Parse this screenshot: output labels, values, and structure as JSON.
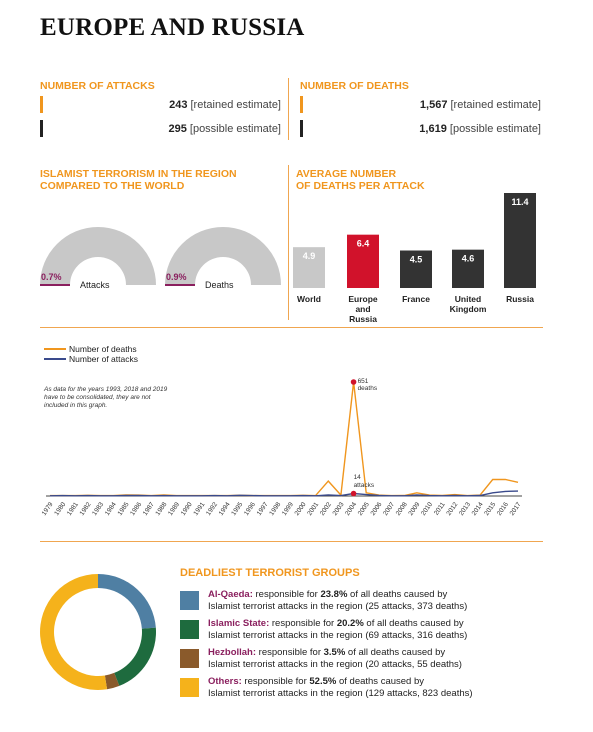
{
  "title": "EUROPE AND RUSSIA",
  "attacks": {
    "heading": "NUMBER OF ATTACKS",
    "retained_value": "243",
    "retained_label": "[retained estimate]",
    "possible_value": "295",
    "possible_label": "[possible estimate]"
  },
  "deaths": {
    "heading": "NUMBER OF DEATHS",
    "retained_value": "1,567",
    "retained_label": "[retained estimate]",
    "possible_value": "1,619",
    "possible_label": "[possible estimate]"
  },
  "comparison": {
    "heading_line1": "ISLAMIST TERRORISM IN THE REGION",
    "heading_line2": "COMPARED TO THE WORLD",
    "gauges": [
      {
        "label": "Attacks",
        "pct_text": "0.7%",
        "value": 0.7
      },
      {
        "label": "Deaths",
        "pct_text": "0.9%",
        "value": 0.9
      }
    ]
  },
  "colors": {
    "orange": "#f0961e",
    "crimson": "#d1122b",
    "dark": "#333333",
    "light": "#c8c8c8",
    "navy": "#3a4a8c",
    "purple": "#8a1f5e",
    "alqaeda": "#4f7fa3",
    "islamicstate": "#1e6b3e",
    "hezbollah": "#8a5a2b",
    "others": "#f5b21b"
  },
  "chart_data": [
    {
      "type": "bar",
      "title": "AVERAGE NUMBER OF DEATHS PER ATTACK",
      "categories": [
        "World",
        "Europe and Russia",
        "France",
        "United Kingdom",
        "Russia"
      ],
      "values": [
        4.9,
        6.4,
        4.5,
        4.6,
        11.4
      ],
      "labels": [
        "4.9",
        "6.4",
        "4.5",
        "4.6",
        "11.4"
      ],
      "ylim": [
        0,
        11.4
      ]
    },
    {
      "type": "line",
      "x": [
        "1979",
        "1980",
        "1981",
        "1982",
        "1983",
        "1984",
        "1985",
        "1986",
        "1987",
        "1988",
        "1989",
        "1990",
        "1991",
        "1992",
        "1994",
        "1995",
        "1996",
        "1997",
        "1998",
        "1999",
        "2000",
        "2001",
        "2002",
        "2003",
        "2004",
        "2005",
        "2006",
        "2007",
        "2008",
        "2009",
        "2010",
        "2011",
        "2012",
        "2013",
        "2014",
        "2015",
        "2016",
        "2017"
      ],
      "series": [
        {
          "name": "Number of deaths",
          "values": [
            2,
            2,
            2,
            4,
            2,
            2,
            6,
            5,
            2,
            6,
            2,
            2,
            2,
            2,
            2,
            4,
            2,
            2,
            2,
            2,
            4,
            2,
            85,
            5,
            651,
            18,
            5,
            2,
            3,
            18,
            5,
            3,
            8,
            2,
            5,
            94,
            94,
            78
          ]
        },
        {
          "name": "Number of attacks",
          "values": [
            1,
            2,
            1,
            2,
            1,
            1,
            3,
            3,
            1,
            2,
            1,
            1,
            1,
            2,
            1,
            4,
            2,
            1,
            1,
            1,
            2,
            1,
            6,
            2,
            14,
            8,
            3,
            1,
            1,
            6,
            2,
            1,
            3,
            1,
            3,
            18,
            26,
            28
          ]
        }
      ],
      "ylim": [
        0,
        651
      ],
      "annotations": [
        {
          "text_line1": "651",
          "text_line2": "deaths"
        },
        {
          "text_line1": "14",
          "text_line2": "attacks"
        }
      ],
      "note_lines": [
        "As data for the years 1993, 2018 and 2019",
        "have to be consolidated, they are not",
        "included in this graph."
      ]
    },
    {
      "type": "pie",
      "title": "DEADLIEST TERRORIST GROUPS",
      "categories": [
        "Al-Qaeda",
        "Islamic State",
        "Hezbollah",
        "Others"
      ],
      "values": [
        23.8,
        20.2,
        3.5,
        52.5
      ]
    }
  ],
  "groups": [
    {
      "name": "Al-Qaeda:",
      "pre": " responsible for ",
      "pct": "23.8%",
      "post": " of all deaths caused by",
      "line2": "Islamist terrorist attacks in the region (25 attacks, 373 deaths)"
    },
    {
      "name": "Islamic State:",
      "pre": " responsible for ",
      "pct": "20.2%",
      "post": " of all deaths caused by",
      "line2": "Islamist terrorist attacks in the region (69 attacks, 316 deaths)"
    },
    {
      "name": "Hezbollah:",
      "pre": " responsible for ",
      "pct": "3.5%",
      "post": " of all deaths caused by",
      "line2": "Islamist terrorist attacks in the region (20 attacks, 55 deaths)"
    },
    {
      "name": "Others:",
      "pre": " responsible for ",
      "pct": "52.5%",
      "post": " of deaths caused by",
      "line2": "Islamist terrorist attacks in the region (129 attacks, 823 deaths)"
    }
  ]
}
